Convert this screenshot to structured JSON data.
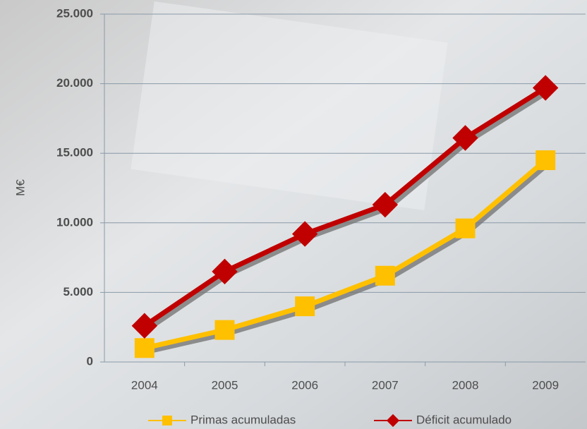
{
  "chart_data": {
    "type": "line",
    "y_label": "M€",
    "categories": [
      "2004",
      "2005",
      "2006",
      "2007",
      "2008",
      "2009"
    ],
    "series": [
      {
        "name": "Primas acumuladas",
        "color": "#ffc000",
        "marker": "square",
        "values": [
          1000,
          2300,
          4000,
          6200,
          9600,
          14500
        ]
      },
      {
        "name": "Déficit acumulado",
        "color": "#c00000",
        "marker": "diamond",
        "values": [
          2600,
          6500,
          9200,
          11300,
          16100,
          19700
        ]
      }
    ],
    "ylim": [
      0,
      25000
    ],
    "yticks": [
      0,
      {
        "value": 5000,
        "label": "5.000"
      },
      {
        "value": 10000,
        "label": "10.000"
      },
      {
        "value": 15000,
        "label": "15.000"
      },
      {
        "value": 20000,
        "label": "20.000"
      },
      {
        "value": 25000,
        "label": "25.000"
      }
    ],
    "grid": true,
    "legend": "bottom"
  }
}
